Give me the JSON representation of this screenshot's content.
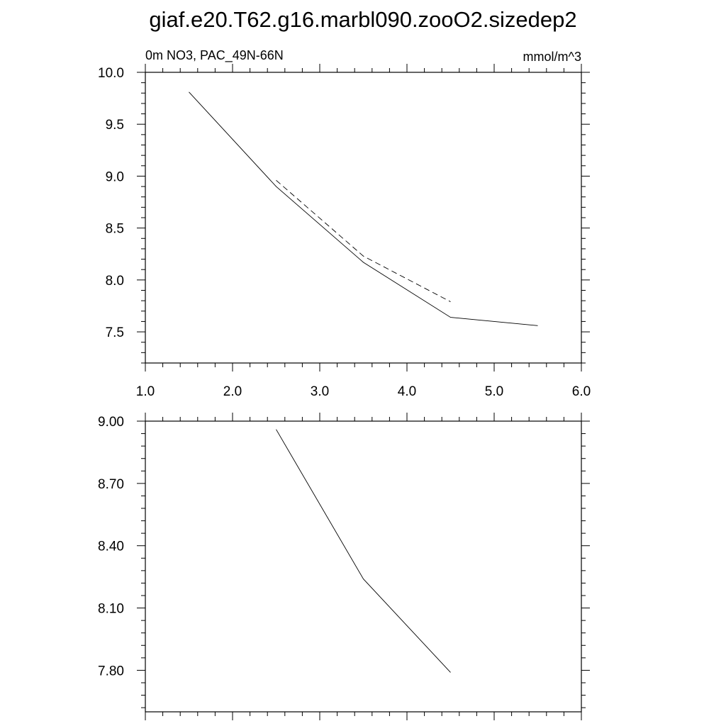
{
  "page_title": "giaf.e20.T62.g16.marbl090.zooO2.sizedep2",
  "chart_data": [
    {
      "type": "line",
      "title": "",
      "left_string": "0m NO3, PAC_49N-66N",
      "right_string": "mmol/m^3",
      "xlim": [
        1.0,
        6.0
      ],
      "ylim": [
        7.2,
        10.0
      ],
      "x_ticks": [
        "1.0",
        "2.0",
        "3.0",
        "4.0",
        "5.0",
        "6.0"
      ],
      "y_ticks": [
        "7.5",
        "8.0",
        "8.5",
        "9.0",
        "9.5",
        "10.0"
      ],
      "grid": false,
      "series": [
        {
          "style": "solid",
          "x": [
            1.5,
            2.5,
            3.5,
            4.5,
            5.5
          ],
          "y": [
            9.81,
            8.9,
            8.17,
            7.64,
            7.56
          ]
        },
        {
          "style": "dashed",
          "x": [
            2.5,
            3.5,
            4.5
          ],
          "y": [
            8.96,
            8.23,
            7.79
          ]
        }
      ]
    },
    {
      "type": "line",
      "title": "",
      "xlim": [
        1.0,
        6.0
      ],
      "ylim": [
        7.6,
        9.0
      ],
      "x_ticks": [],
      "y_ticks": [
        "7.80",
        "8.10",
        "8.40",
        "8.70",
        "9.00"
      ],
      "grid": false,
      "series": [
        {
          "style": "solid",
          "x": [
            2.5,
            3.5,
            4.5
          ],
          "y": [
            8.96,
            8.24,
            7.79
          ]
        }
      ]
    }
  ]
}
